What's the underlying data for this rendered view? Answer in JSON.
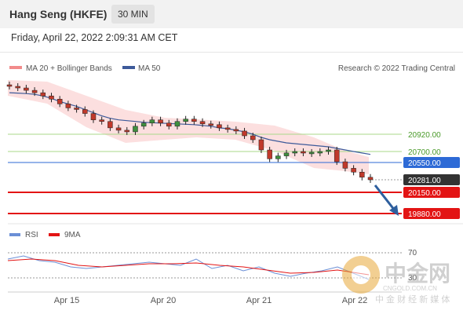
{
  "header": {
    "instrument": "Hang Seng (HKFE)",
    "timeframe": "30 MIN"
  },
  "timestamp": "Friday, April 22, 2022 2:09:31 AM CET",
  "legend": {
    "bb": "MA 20 + Bollinger Bands",
    "ma50": "MA 50",
    "credit": "Research © 2022 Trading Central"
  },
  "rsi_legend": {
    "rsi": "RSI",
    "ma9": "9MA"
  },
  "colors": {
    "bb": "#f28b8b",
    "ma50": "#3d5a9a",
    "support": "#e31414",
    "resistance": "#a8d88a",
    "pivot": "#2d6ad6",
    "last": "#333333",
    "arrow": "#2e5f9e",
    "rsi": "#6b8fd6",
    "rsi_ma": "#e31414"
  },
  "watermark": {
    "name": "中金网",
    "domain": "CNGOLD.COM.CN",
    "tagline": "中 金 财 经 新 媒 体"
  },
  "chart_data": {
    "type": "line",
    "title": "Hang Seng (HKFE)",
    "x_ticks": [
      "Apr 15",
      "Apr 20",
      "Apr 21",
      "Apr 22"
    ],
    "levels": [
      {
        "value": 20920.0,
        "label": "20920.00",
        "kind": "resistance"
      },
      {
        "value": 20700.0,
        "label": "20700.00",
        "kind": "resistance"
      },
      {
        "value": 20550.0,
        "label": "20550.00",
        "kind": "pivot"
      },
      {
        "value": 20281.0,
        "label": "20281.00",
        "kind": "last"
      },
      {
        "value": 20150.0,
        "label": "20150.00",
        "kind": "support"
      },
      {
        "value": 19880.0,
        "label": "19880.00",
        "kind": "support"
      }
    ],
    "price_series": [
      21520,
      21500,
      21470,
      21440,
      21400,
      21360,
      21300,
      21250,
      21230,
      21180,
      21100,
      21080,
      21000,
      20970,
      20950,
      21020,
      21060,
      21100,
      21060,
      21020,
      21080,
      21110,
      21080,
      21050,
      21040,
      21000,
      20980,
      20960,
      20900,
      20850,
      20720,
      20600,
      20640,
      20680,
      20700,
      20680,
      20690,
      20700,
      20720,
      20560,
      20460,
      20400,
      20320,
      20281
    ],
    "ma50_series": [
      21440,
      21435,
      21430,
      21420,
      21400,
      21370,
      21330,
      21300,
      21270,
      21230,
      21190,
      21150,
      21120,
      21100,
      21090,
      21080,
      21070,
      21065,
      21060,
      21055,
      21050,
      21045,
      21040,
      21030,
      21020,
      21000,
      20990,
      20970,
      20950,
      20920,
      20880,
      20850,
      20830,
      20810,
      20800,
      20790,
      20780,
      20770,
      20760,
      20740,
      20720,
      20700,
      20680,
      20660
    ],
    "rsi": {
      "levels": [
        70,
        30
      ],
      "level_labels": [
        "70",
        "30"
      ]
    }
  }
}
